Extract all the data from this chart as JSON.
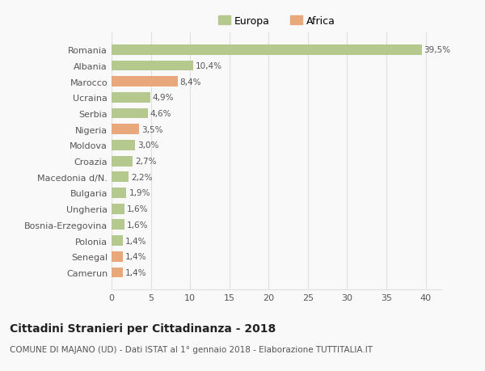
{
  "countries": [
    "Romania",
    "Albania",
    "Marocco",
    "Ucraina",
    "Serbia",
    "Nigeria",
    "Moldova",
    "Croazia",
    "Macedonia d/N.",
    "Bulgaria",
    "Ungheria",
    "Bosnia-Erzegovina",
    "Polonia",
    "Senegal",
    "Camerun"
  ],
  "values": [
    39.5,
    10.4,
    8.4,
    4.9,
    4.6,
    3.5,
    3.0,
    2.7,
    2.2,
    1.9,
    1.6,
    1.6,
    1.4,
    1.4,
    1.4
  ],
  "labels": [
    "39,5%",
    "10,4%",
    "8,4%",
    "4,9%",
    "4,6%",
    "3,5%",
    "3,0%",
    "2,7%",
    "2,2%",
    "1,9%",
    "1,6%",
    "1,6%",
    "1,4%",
    "1,4%",
    "1,4%"
  ],
  "continents": [
    "Europa",
    "Europa",
    "Africa",
    "Europa",
    "Europa",
    "Africa",
    "Europa",
    "Europa",
    "Europa",
    "Europa",
    "Europa",
    "Europa",
    "Europa",
    "Africa",
    "Africa"
  ],
  "europa_color": "#b5c98e",
  "africa_color": "#e8a87c",
  "background_color": "#f9f9f9",
  "grid_color": "#e0e0e0",
  "title": "Cittadini Stranieri per Cittadinanza - 2018",
  "subtitle": "COMUNE DI MAJANO (UD) - Dati ISTAT al 1° gennaio 2018 - Elaborazione TUTTITALIA.IT",
  "legend_europa": "Europa",
  "legend_africa": "Africa",
  "xlim": [
    0,
    42
  ],
  "xticks": [
    0,
    5,
    10,
    15,
    20,
    25,
    30,
    35,
    40
  ]
}
